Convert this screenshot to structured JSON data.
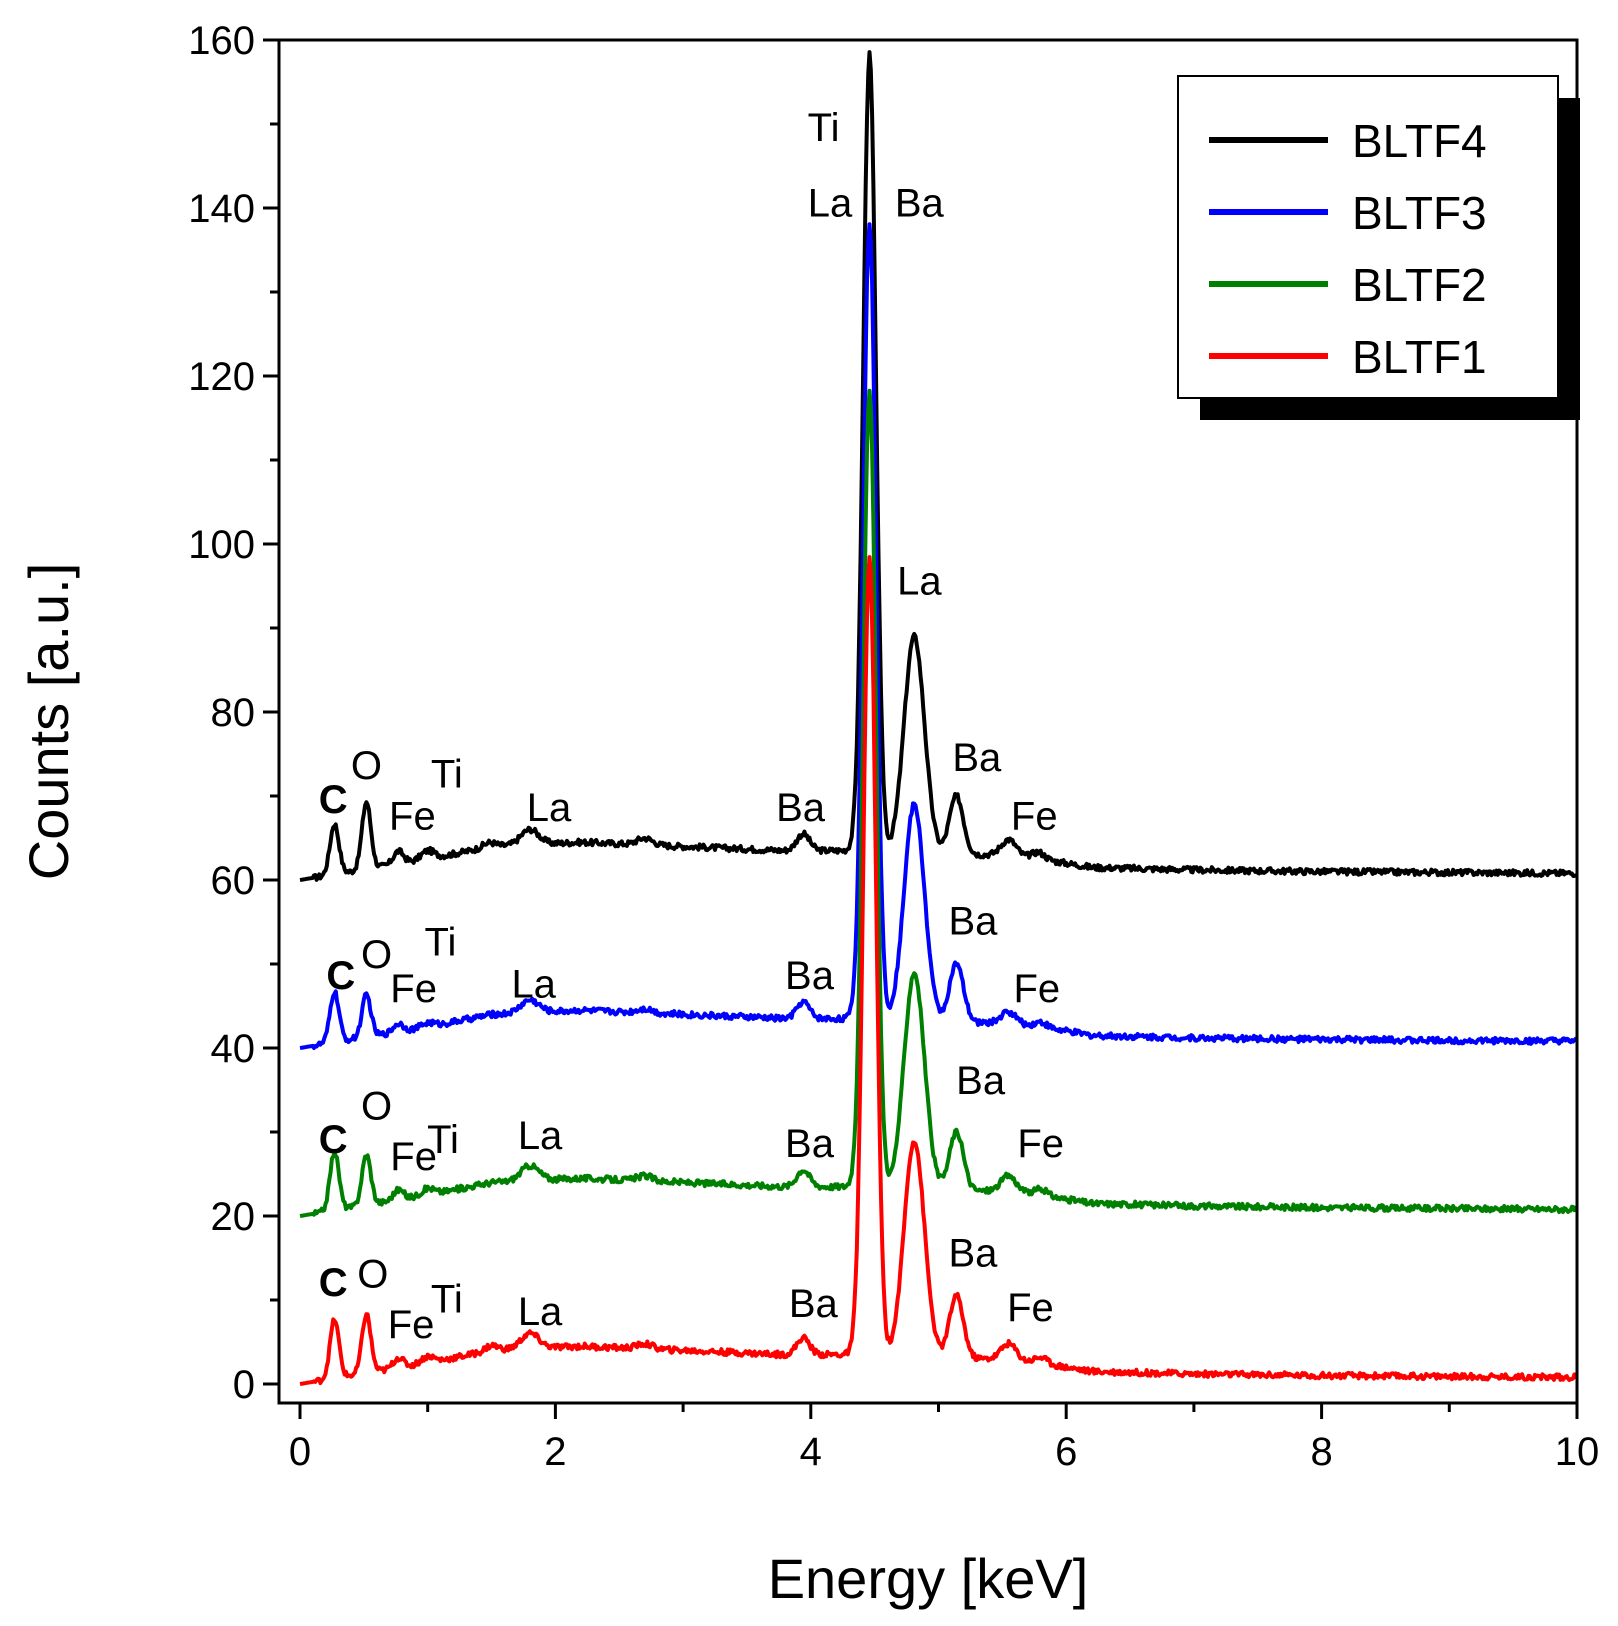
{
  "chart_data": {
    "type": "line",
    "title": "",
    "xlabel": "Energy [keV]",
    "ylabel": "Counts [a.u.]",
    "xlim": [
      0,
      10
    ],
    "ylim": [
      0,
      160
    ],
    "x_ticks": [
      0,
      2,
      4,
      6,
      8,
      10
    ],
    "y_ticks": [
      0,
      20,
      40,
      60,
      80,
      100,
      120,
      140,
      160
    ],
    "grid": false,
    "legend_position": "top-right",
    "series": [
      {
        "name": "BLTF4",
        "color": "#000000",
        "offset": 60,
        "baseline": [
          [
            0,
            0
          ],
          [
            0.2,
            0.5
          ],
          [
            0.6,
            1.5
          ],
          [
            1.0,
            2.5
          ],
          [
            1.5,
            4
          ],
          [
            2.2,
            4.5
          ],
          [
            3.0,
            4
          ],
          [
            3.8,
            3.5
          ],
          [
            4.3,
            3.5
          ],
          [
            4.6,
            3
          ],
          [
            5.0,
            3
          ],
          [
            5.4,
            3
          ],
          [
            5.8,
            2.5
          ],
          [
            6.2,
            1.5
          ],
          [
            7.0,
            1.2
          ],
          [
            8.0,
            1
          ],
          [
            10,
            0.8
          ]
        ],
        "peaks": [
          [
            0.27,
            6,
            0.035
          ],
          [
            0.52,
            8,
            0.035
          ],
          [
            0.77,
            1.5,
            0.04
          ],
          [
            1.0,
            1,
            0.05
          ],
          [
            1.48,
            0.5,
            0.05
          ],
          [
            1.8,
            1.8,
            0.07
          ],
          [
            2.7,
            0.8,
            0.06
          ],
          [
            3.94,
            2,
            0.05
          ],
          [
            4.46,
            95,
            0.05
          ],
          [
            4.81,
            26,
            0.08
          ],
          [
            5.14,
            7,
            0.055
          ],
          [
            5.55,
            2,
            0.06
          ],
          [
            5.78,
            0.8,
            0.05
          ]
        ]
      },
      {
        "name": "BLTF3",
        "color": "#0000ff",
        "offset": 40,
        "baseline": [
          [
            0,
            0
          ],
          [
            0.2,
            0.5
          ],
          [
            0.6,
            1.5
          ],
          [
            1.0,
            2.5
          ],
          [
            1.5,
            4
          ],
          [
            2.2,
            4.5
          ],
          [
            3.0,
            4
          ],
          [
            3.8,
            3.5
          ],
          [
            4.3,
            3.5
          ],
          [
            4.6,
            3
          ],
          [
            5.0,
            3
          ],
          [
            5.4,
            3
          ],
          [
            5.8,
            2.5
          ],
          [
            6.2,
            1.5
          ],
          [
            7.0,
            1.2
          ],
          [
            8.0,
            1
          ],
          [
            10,
            0.8
          ]
        ],
        "peaks": [
          [
            0.27,
            6,
            0.035
          ],
          [
            0.52,
            5,
            0.035
          ],
          [
            0.77,
            1,
            0.04
          ],
          [
            1.0,
            0.5,
            0.05
          ],
          [
            1.8,
            1.5,
            0.07
          ],
          [
            2.7,
            0.5,
            0.06
          ],
          [
            3.94,
            2,
            0.05
          ],
          [
            4.46,
            95,
            0.05
          ],
          [
            4.81,
            26,
            0.08
          ],
          [
            5.14,
            7,
            0.055
          ],
          [
            5.55,
            1.5,
            0.06
          ],
          [
            5.8,
            0.6,
            0.05
          ]
        ]
      },
      {
        "name": "BLTF2",
        "color": "#008000",
        "offset": 20,
        "baseline": [
          [
            0,
            0
          ],
          [
            0.2,
            0.5
          ],
          [
            0.6,
            1.5
          ],
          [
            1.0,
            2.5
          ],
          [
            1.5,
            4
          ],
          [
            2.2,
            4.5
          ],
          [
            3.0,
            4
          ],
          [
            3.8,
            3.5
          ],
          [
            4.3,
            3.5
          ],
          [
            4.6,
            3
          ],
          [
            5.0,
            3
          ],
          [
            5.4,
            3
          ],
          [
            5.8,
            2.5
          ],
          [
            6.2,
            1.5
          ],
          [
            7.0,
            1.2
          ],
          [
            8.0,
            1
          ],
          [
            10,
            0.8
          ]
        ],
        "peaks": [
          [
            0.27,
            7,
            0.035
          ],
          [
            0.52,
            6,
            0.035
          ],
          [
            0.77,
            1.2,
            0.04
          ],
          [
            1.0,
            0.8,
            0.05
          ],
          [
            1.8,
            1.8,
            0.07
          ],
          [
            2.7,
            0.6,
            0.06
          ],
          [
            3.94,
            2,
            0.05
          ],
          [
            4.46,
            95,
            0.05
          ],
          [
            4.81,
            26,
            0.08
          ],
          [
            5.14,
            7,
            0.055
          ],
          [
            5.55,
            2,
            0.06
          ],
          [
            5.8,
            0.7,
            0.05
          ]
        ]
      },
      {
        "name": "BLTF1",
        "color": "#ff0000",
        "offset": 0,
        "baseline": [
          [
            0,
            0
          ],
          [
            0.2,
            0.5
          ],
          [
            0.6,
            1.5
          ],
          [
            1.0,
            2.5
          ],
          [
            1.5,
            4
          ],
          [
            2.2,
            4.5
          ],
          [
            3.0,
            4
          ],
          [
            3.8,
            3.5
          ],
          [
            4.3,
            3.5
          ],
          [
            4.6,
            3
          ],
          [
            5.0,
            3
          ],
          [
            5.4,
            3
          ],
          [
            5.8,
            2.5
          ],
          [
            6.2,
            1.5
          ],
          [
            7.0,
            1.2
          ],
          [
            8.0,
            1
          ],
          [
            10,
            0.8
          ]
        ],
        "peaks": [
          [
            0.27,
            7,
            0.035
          ],
          [
            0.52,
            7,
            0.035
          ],
          [
            0.77,
            1.2,
            0.04
          ],
          [
            1.0,
            0.8,
            0.05
          ],
          [
            1.5,
            0.6,
            0.05
          ],
          [
            1.8,
            1.8,
            0.07
          ],
          [
            2.7,
            0.6,
            0.06
          ],
          [
            3.94,
            2,
            0.05
          ],
          [
            4.46,
            95,
            0.05
          ],
          [
            4.81,
            26,
            0.08
          ],
          [
            5.14,
            7.5,
            0.055
          ],
          [
            5.55,
            2,
            0.06
          ],
          [
            5.8,
            0.7,
            0.05
          ]
        ]
      }
    ],
    "annotations": [
      {
        "text": "Ti",
        "x": 4.1,
        "y": 148
      },
      {
        "text": "La",
        "x": 4.15,
        "y": 139
      },
      {
        "text": "Ba",
        "x": 4.85,
        "y": 139
      },
      {
        "text": "La",
        "x": 4.85,
        "y": 94
      },
      {
        "text": "C",
        "x": 0.26,
        "y": 68,
        "bold": true
      },
      {
        "text": "O",
        "x": 0.52,
        "y": 72
      },
      {
        "text": "Fe",
        "x": 0.88,
        "y": 66
      },
      {
        "text": "Ti",
        "x": 1.15,
        "y": 71
      },
      {
        "text": "La",
        "x": 1.95,
        "y": 67
      },
      {
        "text": "Ba",
        "x": 3.92,
        "y": 67
      },
      {
        "text": "Ba",
        "x": 5.3,
        "y": 73
      },
      {
        "text": "Fe",
        "x": 5.75,
        "y": 66
      },
      {
        "text": "C",
        "x": 0.32,
        "y": 47,
        "bold": true
      },
      {
        "text": "O",
        "x": 0.6,
        "y": 49.5
      },
      {
        "text": "Fe",
        "x": 0.89,
        "y": 45.5
      },
      {
        "text": "Ti",
        "x": 1.1,
        "y": 51
      },
      {
        "text": "La",
        "x": 1.83,
        "y": 46
      },
      {
        "text": "Ba",
        "x": 3.99,
        "y": 47
      },
      {
        "text": "Ba",
        "x": 5.27,
        "y": 53.5
      },
      {
        "text": "Fe",
        "x": 5.77,
        "y": 45.5
      },
      {
        "text": "C",
        "x": 0.26,
        "y": 27.5,
        "bold": true
      },
      {
        "text": "O",
        "x": 0.6,
        "y": 31.5
      },
      {
        "text": "Fe",
        "x": 0.89,
        "y": 25.5
      },
      {
        "text": "Ti",
        "x": 1.12,
        "y": 27.5
      },
      {
        "text": "La",
        "x": 1.88,
        "y": 28
      },
      {
        "text": "Ba",
        "x": 3.99,
        "y": 27
      },
      {
        "text": "Ba",
        "x": 5.33,
        "y": 34.5
      },
      {
        "text": "Fe",
        "x": 5.8,
        "y": 27
      },
      {
        "text": "C",
        "x": 0.26,
        "y": 10.5,
        "bold": true
      },
      {
        "text": "O",
        "x": 0.57,
        "y": 11.5
      },
      {
        "text": "Fe",
        "x": 0.87,
        "y": 5.5
      },
      {
        "text": "Ti",
        "x": 1.15,
        "y": 8.5
      },
      {
        "text": "La",
        "x": 1.88,
        "y": 7
      },
      {
        "text": "Ba",
        "x": 4.02,
        "y": 8
      },
      {
        "text": "Ba",
        "x": 5.27,
        "y": 14
      },
      {
        "text": "Fe",
        "x": 5.72,
        "y": 7.5
      }
    ]
  }
}
